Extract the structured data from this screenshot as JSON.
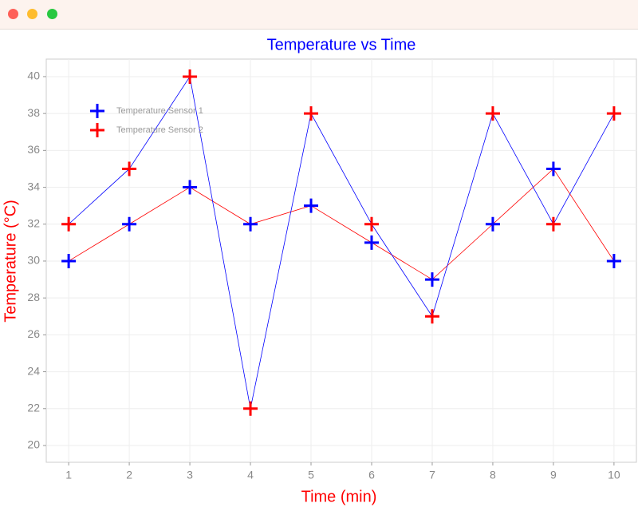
{
  "chart_data": {
    "type": "line",
    "title": "Temperature vs Time",
    "x_label": "Time (min)",
    "y_label": "Temperature (°C)",
    "x": [
      1,
      2,
      3,
      4,
      5,
      6,
      7,
      8,
      9,
      10
    ],
    "series": [
      {
        "name": "Temperature Sensor 1",
        "color": "#0000ff",
        "line_color": "#ff0000",
        "values": [
          30,
          32,
          34,
          32,
          33,
          31,
          29,
          32,
          35,
          30
        ]
      },
      {
        "name": "Temperature Sensor 2",
        "color": "#ff0000",
        "line_color": "#0000ff",
        "values": [
          32,
          35,
          40,
          22,
          38,
          32,
          27,
          38,
          32,
          38
        ]
      }
    ],
    "xlim": [
      0.63,
      10.37
    ],
    "xticks": [
      1,
      2,
      3,
      4,
      5,
      6,
      7,
      8,
      9,
      10
    ],
    "ylim": [
      19.09,
      40.95
    ],
    "yticks": [
      20,
      22,
      24,
      26,
      28,
      30,
      32,
      34,
      36,
      38,
      40
    ],
    "grid": true,
    "legend": "upper left",
    "title_color": "#0000ff",
    "label_color": "#ff0000"
  }
}
